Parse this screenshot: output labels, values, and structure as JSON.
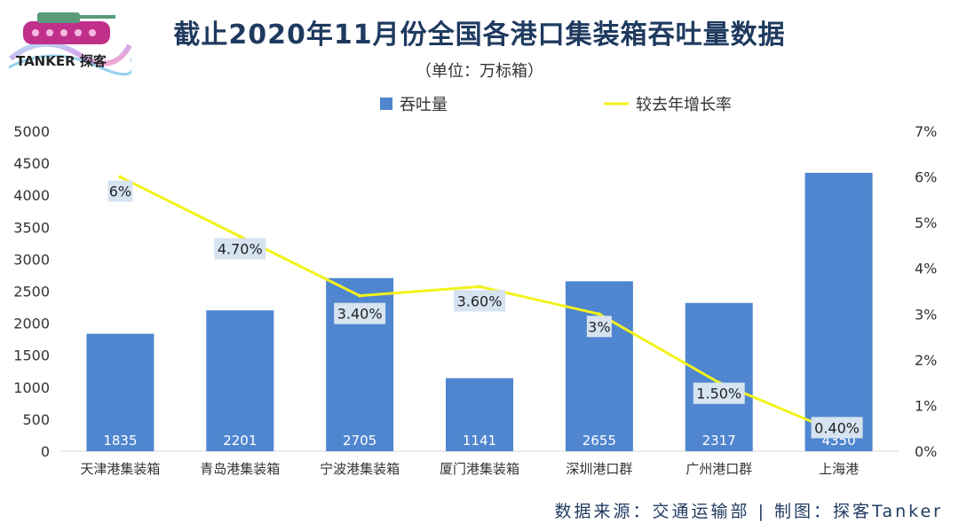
{
  "header": {
    "title": "截止2020年11月份全国各港口集装箱吞吐量数据",
    "subtitle": "（单位：万标箱）",
    "logo_text": "TANKER 探客"
  },
  "footer": {
    "source": "数据来源：交通运输部  |  制图：探客Tanker"
  },
  "colors": {
    "bar": "#4f86cf",
    "line": "#f2f21a",
    "label_bg": "#d6e3f1",
    "axis_text": "#333333",
    "title": "#1f3a5f"
  },
  "chart_data": {
    "type": "bar",
    "categories": [
      "天津港集装箱",
      "青岛港集装箱",
      "宁波港集装箱",
      "厦门港集装箱",
      "深圳港口群",
      "广州港口群",
      "上海港"
    ],
    "series": [
      {
        "name": "吞吐量",
        "type": "bar",
        "axis": "left",
        "values": [
          1835,
          2201,
          2705,
          1141,
          2655,
          2317,
          4350
        ],
        "labels": [
          "1835",
          "2201",
          "2705",
          "1141",
          "2655",
          "2317",
          "4350"
        ]
      },
      {
        "name": "较去年增长率",
        "type": "line",
        "axis": "right",
        "values": [
          6,
          4.7,
          3.4,
          3.6,
          3,
          1.5,
          0.4
        ],
        "labels": [
          "6%",
          "4.70%",
          "3.40%",
          "3.60%",
          "3%",
          "1.50%",
          "0.40%"
        ]
      }
    ],
    "y_left": {
      "min": 0,
      "max": 5000,
      "ticks": [
        "0",
        "500",
        "1000",
        "1500",
        "2000",
        "2500",
        "3000",
        "3500",
        "4000",
        "4500",
        "5000"
      ]
    },
    "y_right": {
      "min": 0,
      "max": 7,
      "ticks": [
        "0%",
        "1%",
        "2%",
        "3%",
        "4%",
        "5%",
        "6%",
        "7%"
      ]
    },
    "legend": [
      "吞吐量",
      "较去年增长率"
    ],
    "legend_position": "top-center",
    "grid": false
  }
}
